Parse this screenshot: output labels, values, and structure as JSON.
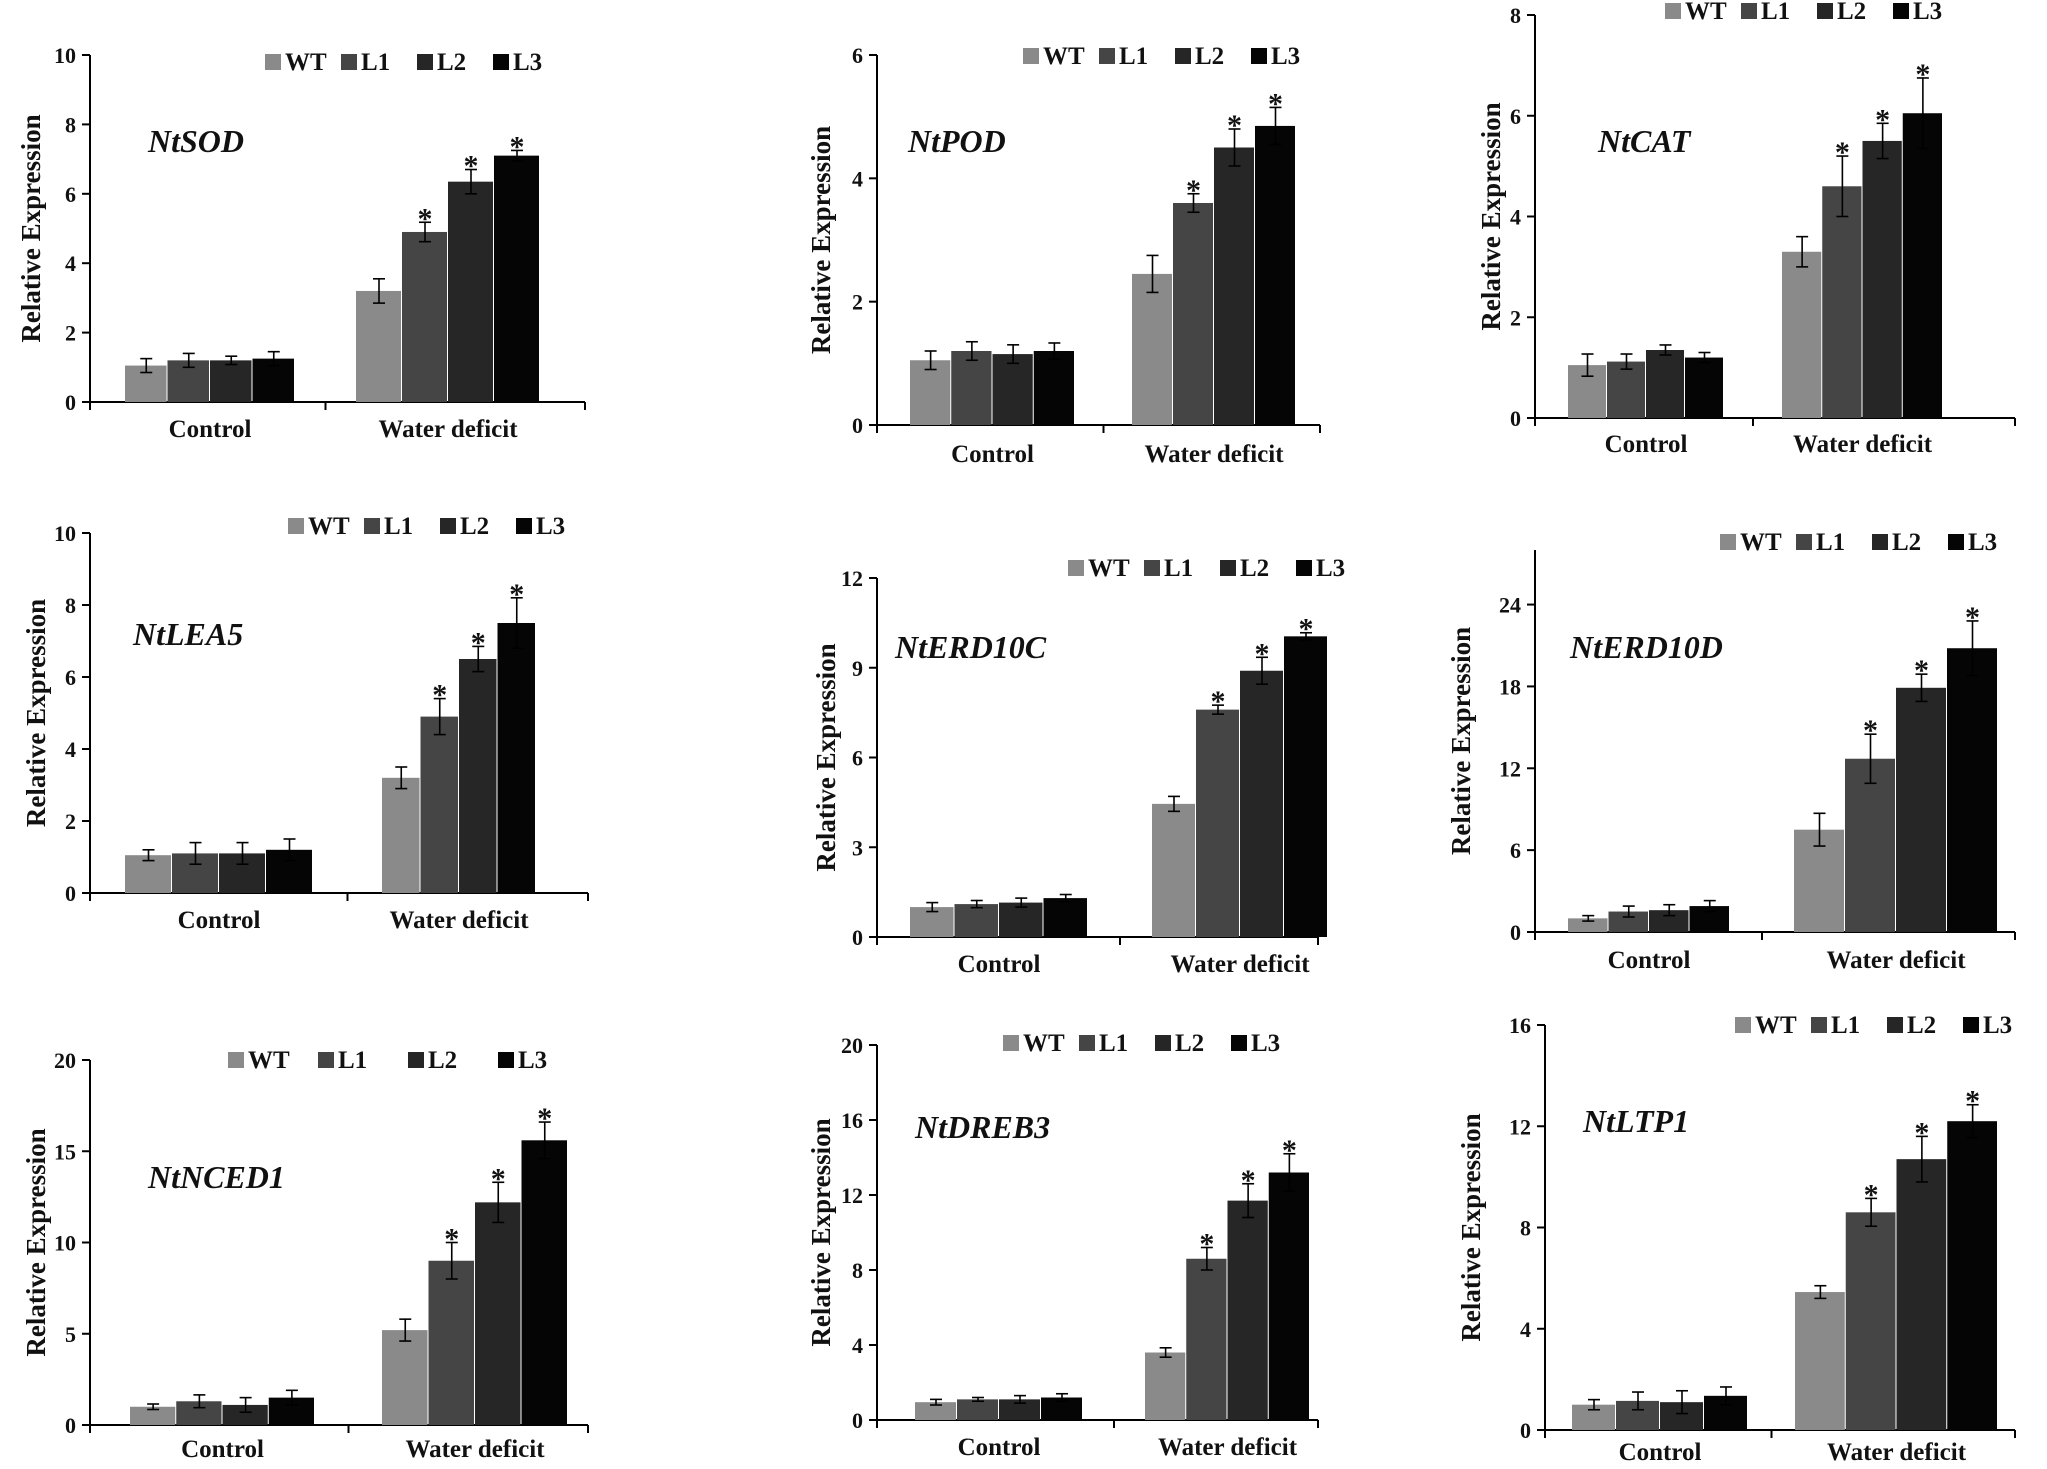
{
  "chart_data": [
    {
      "type": "bar",
      "title": "NtSOD",
      "ylabel": "Relative Expression",
      "ylim": [
        0,
        10
      ],
      "yticks": [
        "0",
        "2",
        "4",
        "6",
        "8",
        "10"
      ],
      "categories": [
        "Control",
        "Water deficit"
      ],
      "series": [
        {
          "name": "WT",
          "values": [
            1.05,
            3.2
          ],
          "errors": [
            0.2,
            0.35
          ]
        },
        {
          "name": "L1",
          "values": [
            1.2,
            4.9
          ],
          "errors": [
            0.2,
            0.28
          ]
        },
        {
          "name": "L2",
          "values": [
            1.2,
            6.35
          ],
          "errors": [
            0.12,
            0.35
          ]
        },
        {
          "name": "L3",
          "values": [
            1.25,
            7.1
          ],
          "errors": [
            0.2,
            0.15
          ]
        }
      ],
      "significance": [
        [
          "",
          ""
        ],
        [
          "",
          "*"
        ],
        [
          "",
          "*"
        ],
        [
          "",
          "*"
        ]
      ]
    },
    {
      "type": "bar",
      "title": "NtPOD",
      "ylabel": "Relative Expression",
      "ylim": [
        0,
        6
      ],
      "yticks": [
        "0",
        "2",
        "4",
        "6"
      ],
      "categories": [
        "Control",
        "Water deficit"
      ],
      "series": [
        {
          "name": "WT",
          "values": [
            1.05,
            2.45
          ],
          "errors": [
            0.15,
            0.3
          ]
        },
        {
          "name": "L1",
          "values": [
            1.2,
            3.6
          ],
          "errors": [
            0.15,
            0.15
          ]
        },
        {
          "name": "L2",
          "values": [
            1.15,
            4.5
          ],
          "errors": [
            0.15,
            0.3
          ]
        },
        {
          "name": "L3",
          "values": [
            1.2,
            4.85
          ],
          "errors": [
            0.13,
            0.3
          ]
        }
      ],
      "significance": [
        [
          "",
          ""
        ],
        [
          "",
          "*"
        ],
        [
          "",
          "*"
        ],
        [
          "",
          "*"
        ]
      ]
    },
    {
      "type": "bar",
      "title": "NtCAT",
      "ylabel": "Relative Expression",
      "ylim": [
        0,
        8
      ],
      "yticks": [
        "0",
        "2",
        "4",
        "6",
        "8"
      ],
      "categories": [
        "Control",
        "Water deficit"
      ],
      "series": [
        {
          "name": "WT",
          "values": [
            1.05,
            3.3
          ],
          "errors": [
            0.22,
            0.3
          ]
        },
        {
          "name": "L1",
          "values": [
            1.12,
            4.6
          ],
          "errors": [
            0.15,
            0.6
          ]
        },
        {
          "name": "L2",
          "values": [
            1.35,
            5.5
          ],
          "errors": [
            0.1,
            0.35
          ]
        },
        {
          "name": "L3",
          "values": [
            1.2,
            6.05
          ],
          "errors": [
            0.1,
            0.7
          ]
        }
      ],
      "significance": [
        [
          "",
          ""
        ],
        [
          "",
          "*"
        ],
        [
          "",
          "*"
        ],
        [
          "",
          "*"
        ]
      ]
    },
    {
      "type": "bar",
      "title": "NtLEA5",
      "ylabel": "Relative Expression",
      "ylim": [
        0,
        10
      ],
      "yticks": [
        "0",
        "2",
        "4",
        "6",
        "8",
        "10"
      ],
      "categories": [
        "Control",
        "Water deficit"
      ],
      "series": [
        {
          "name": "WT",
          "values": [
            1.05,
            3.2
          ],
          "errors": [
            0.15,
            0.3
          ]
        },
        {
          "name": "L1",
          "values": [
            1.1,
            4.9
          ],
          "errors": [
            0.3,
            0.5
          ]
        },
        {
          "name": "L2",
          "values": [
            1.1,
            6.5
          ],
          "errors": [
            0.3,
            0.35
          ]
        },
        {
          "name": "L3",
          "values": [
            1.2,
            7.5
          ],
          "errors": [
            0.3,
            0.7
          ]
        }
      ],
      "significance": [
        [
          "",
          ""
        ],
        [
          "",
          "*"
        ],
        [
          "",
          "*"
        ],
        [
          "",
          "*"
        ]
      ]
    },
    {
      "type": "bar",
      "title": "NtERD10C",
      "ylabel": "Relative Expression",
      "ylim": [
        0,
        12
      ],
      "yticks": [
        "0",
        "3",
        "6",
        "9",
        "12"
      ],
      "categories": [
        "Control",
        "Water deficit"
      ],
      "series": [
        {
          "name": "WT",
          "values": [
            1.0,
            4.45
          ],
          "errors": [
            0.15,
            0.25
          ]
        },
        {
          "name": "L1",
          "values": [
            1.1,
            7.6
          ],
          "errors": [
            0.12,
            0.15
          ]
        },
        {
          "name": "L2",
          "values": [
            1.15,
            8.9
          ],
          "errors": [
            0.15,
            0.45
          ]
        },
        {
          "name": "L3",
          "values": [
            1.3,
            10.05
          ],
          "errors": [
            0.12,
            0.12
          ]
        }
      ],
      "significance": [
        [
          "",
          ""
        ],
        [
          "",
          "*"
        ],
        [
          "",
          "*"
        ],
        [
          "",
          "*"
        ]
      ]
    },
    {
      "type": "bar",
      "title": "NtERD10D",
      "ylabel": "Relative Expression",
      "ylim": [
        0,
        28
      ],
      "yticks": [
        "0",
        "6",
        "12",
        "18",
        "24"
      ],
      "categories": [
        "Control",
        "Water deficit"
      ],
      "series": [
        {
          "name": "WT",
          "values": [
            1.0,
            7.5
          ],
          "errors": [
            0.2,
            1.2
          ]
        },
        {
          "name": "L1",
          "values": [
            1.5,
            12.7
          ],
          "errors": [
            0.4,
            1.8
          ]
        },
        {
          "name": "L2",
          "values": [
            1.6,
            17.9
          ],
          "errors": [
            0.4,
            1.0
          ]
        },
        {
          "name": "L3",
          "values": [
            1.9,
            20.8
          ],
          "errors": [
            0.4,
            2.0
          ]
        }
      ],
      "significance": [
        [
          "",
          ""
        ],
        [
          "",
          "*"
        ],
        [
          "",
          "*"
        ],
        [
          "",
          "*"
        ]
      ]
    },
    {
      "type": "bar",
      "title": "NtNCED1",
      "ylabel": "Relative Expression",
      "ylim": [
        0,
        20
      ],
      "yticks": [
        "0",
        "5",
        "10",
        "15",
        "20"
      ],
      "categories": [
        "Control",
        "Water deficit"
      ],
      "series": [
        {
          "name": "WT",
          "values": [
            1.0,
            5.2
          ],
          "errors": [
            0.15,
            0.6
          ]
        },
        {
          "name": "L1",
          "values": [
            1.3,
            9.0
          ],
          "errors": [
            0.35,
            1.0
          ]
        },
        {
          "name": "L2",
          "values": [
            1.1,
            12.2
          ],
          "errors": [
            0.4,
            1.1
          ]
        },
        {
          "name": "L3",
          "values": [
            1.5,
            15.6
          ],
          "errors": [
            0.4,
            1.0
          ]
        }
      ],
      "significance": [
        [
          "",
          ""
        ],
        [
          "",
          "*"
        ],
        [
          "",
          "*"
        ],
        [
          "",
          "*"
        ]
      ]
    },
    {
      "type": "bar",
      "title": "NtDREB3",
      "ylabel": "Relative Expression",
      "ylim": [
        0,
        20
      ],
      "yticks": [
        "0",
        "4",
        "8",
        "12",
        "16",
        "20"
      ],
      "categories": [
        "Control",
        "Water deficit"
      ],
      "series": [
        {
          "name": "WT",
          "values": [
            0.95,
            3.6
          ],
          "errors": [
            0.15,
            0.25
          ]
        },
        {
          "name": "L1",
          "values": [
            1.1,
            8.6
          ],
          "errors": [
            0.1,
            0.6
          ]
        },
        {
          "name": "L2",
          "values": [
            1.1,
            11.7
          ],
          "errors": [
            0.2,
            0.9
          ]
        },
        {
          "name": "L3",
          "values": [
            1.2,
            13.2
          ],
          "errors": [
            0.2,
            1.0
          ]
        }
      ],
      "significance": [
        [
          "",
          ""
        ],
        [
          "",
          "*"
        ],
        [
          "",
          "*"
        ],
        [
          "",
          "*"
        ]
      ]
    },
    {
      "type": "bar",
      "title": "NtLTP1",
      "ylabel": "Relative Expression",
      "ylim": [
        0,
        16
      ],
      "yticks": [
        "0",
        "4",
        "8",
        "12",
        "16"
      ],
      "categories": [
        "Control",
        "Water deficit"
      ],
      "series": [
        {
          "name": "WT",
          "values": [
            1.0,
            5.45
          ],
          "errors": [
            0.2,
            0.25
          ]
        },
        {
          "name": "L1",
          "values": [
            1.15,
            8.6
          ],
          "errors": [
            0.35,
            0.55
          ]
        },
        {
          "name": "L2",
          "values": [
            1.1,
            10.7
          ],
          "errors": [
            0.45,
            0.9
          ]
        },
        {
          "name": "L3",
          "values": [
            1.35,
            12.2
          ],
          "errors": [
            0.35,
            0.65
          ]
        }
      ],
      "significance": [
        [
          "",
          ""
        ],
        [
          "",
          "*"
        ],
        [
          "",
          "*"
        ],
        [
          "",
          "*"
        ]
      ]
    }
  ],
  "colors": {
    "WT": "#8a8a8a",
    "L1": "#454545",
    "L2": "#262626",
    "L3": "#050505",
    "axis": "#000000"
  }
}
